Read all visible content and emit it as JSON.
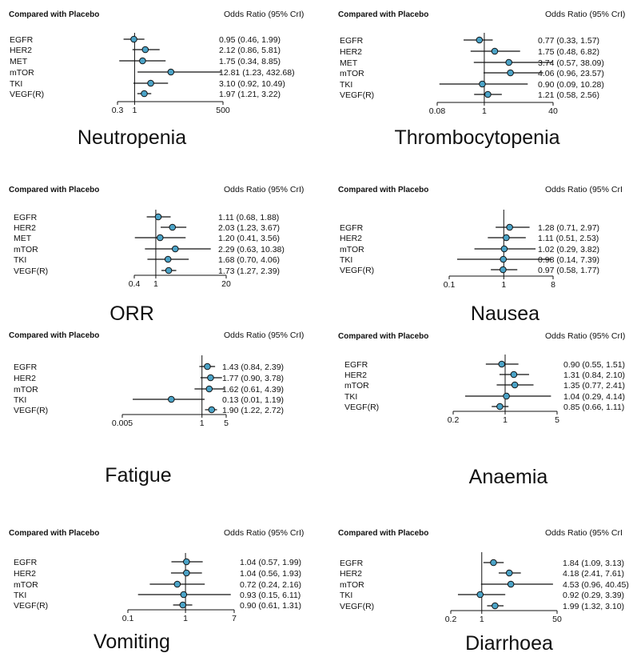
{
  "chart_data": [
    {
      "type": "forest",
      "panel_title": "Neutropenia",
      "header_left": "Compared with Placebo",
      "header_right": "Odds Ratio (95% CrI)",
      "scale": "log",
      "ticks": [
        "0.3",
        "1",
        "500"
      ],
      "xlim": [
        0.3,
        500
      ],
      "reference_line": 1,
      "rows": [
        {
          "label": "EGFR",
          "or": 0.95,
          "lo": 0.46,
          "hi": 1.99,
          "text": "0.95 (0.46, 1.99)"
        },
        {
          "label": "HER2",
          "or": 2.12,
          "lo": 0.86,
          "hi": 5.81,
          "text": "2.12 (0.86, 5.81)"
        },
        {
          "label": "MET",
          "or": 1.75,
          "lo": 0.34,
          "hi": 8.85,
          "text": "1.75 (0.34, 8.85)"
        },
        {
          "label": "mTOR",
          "or": 12.81,
          "lo": 1.23,
          "hi": 432.68,
          "text": "12.81 (1.23, 432.68)"
        },
        {
          "label": "TKI",
          "or": 3.1,
          "lo": 0.92,
          "hi": 10.49,
          "text": "3.10 (0.92, 10.49)"
        },
        {
          "label": "VEGF(R)",
          "or": 1.97,
          "lo": 1.21,
          "hi": 3.22,
          "text": "1.97 (1.21, 3.22)"
        }
      ]
    },
    {
      "type": "forest",
      "panel_title": "Thrombocytopenia",
      "header_left": "Compared with Placebo",
      "header_right": "Odds Ratio (95% CrI)",
      "scale": "log",
      "ticks": [
        "0.08",
        "1",
        "40"
      ],
      "xlim": [
        0.08,
        40
      ],
      "reference_line": 1,
      "rows": [
        {
          "label": "EGFR",
          "or": 0.77,
          "lo": 0.33,
          "hi": 1.57,
          "text": "0.77 (0.33, 1.57)"
        },
        {
          "label": "HER2",
          "or": 1.75,
          "lo": 0.48,
          "hi": 6.82,
          "text": "1.75 (0.48, 6.82)"
        },
        {
          "label": "MET",
          "or": 3.74,
          "lo": 0.57,
          "hi": 38.09,
          "text": "3.74 (0.57, 38.09)"
        },
        {
          "label": "mTOR",
          "or": 4.06,
          "lo": 0.96,
          "hi": 23.57,
          "text": "4.06 (0.96, 23.57)"
        },
        {
          "label": "TKI",
          "or": 0.9,
          "lo": 0.09,
          "hi": 10.28,
          "text": "0.90 (0.09, 10.28)"
        },
        {
          "label": "VEGF(R)",
          "or": 1.21,
          "lo": 0.58,
          "hi": 2.56,
          "text": "1.21 (0.58, 2.56)"
        }
      ]
    },
    {
      "type": "forest",
      "panel_title": "ORR",
      "header_left": "Compared with Placebo",
      "header_right": "Odds Ratio (95% CrI)",
      "scale": "log",
      "ticks": [
        "0.4",
        "1",
        "20"
      ],
      "xlim": [
        0.4,
        20
      ],
      "reference_line": 1,
      "rows": [
        {
          "label": "EGFR",
          "or": 1.11,
          "lo": 0.68,
          "hi": 1.88,
          "text": "1.11 (0.68, 1.88)"
        },
        {
          "label": "HER2",
          "or": 2.03,
          "lo": 1.23,
          "hi": 3.67,
          "text": "2.03 (1.23, 3.67)"
        },
        {
          "label": "MET",
          "or": 1.2,
          "lo": 0.41,
          "hi": 3.56,
          "text": "1.20 (0.41, 3.56)"
        },
        {
          "label": "mTOR",
          "or": 2.29,
          "lo": 0.63,
          "hi": 10.38,
          "text": "2.29 (0.63, 10.38)"
        },
        {
          "label": "TKI",
          "or": 1.68,
          "lo": 0.7,
          "hi": 4.06,
          "text": "1.68 (0.70, 4.06)"
        },
        {
          "label": "VEGF(R)",
          "or": 1.73,
          "lo": 1.27,
          "hi": 2.39,
          "text": "1.73 (1.27, 2.39)"
        }
      ]
    },
    {
      "type": "forest",
      "panel_title": "Nausea",
      "header_left": "Compared with Placebo",
      "header_right": "Odds Ratio (95% CrI",
      "scale": "log",
      "ticks": [
        "0.1",
        "1",
        "8"
      ],
      "xlim": [
        0.1,
        8
      ],
      "reference_line": 1,
      "rows": [
        {
          "label": "EGFR",
          "or": 1.28,
          "lo": 0.71,
          "hi": 2.97,
          "text": "1.28 (0.71, 2.97)"
        },
        {
          "label": "HER2",
          "or": 1.11,
          "lo": 0.51,
          "hi": 2.53,
          "text": "1.11 (0.51, 2.53)"
        },
        {
          "label": "mTOR",
          "or": 1.02,
          "lo": 0.29,
          "hi": 3.82,
          "text": "1.02 (0.29, 3.82)"
        },
        {
          "label": "TKI",
          "or": 0.98,
          "lo": 0.14,
          "hi": 7.39,
          "text": "0.98 (0.14, 7.39)"
        },
        {
          "label": "VEGF(R)",
          "or": 0.97,
          "lo": 0.58,
          "hi": 1.77,
          "text": "0.97 (0.58, 1.77)"
        }
      ]
    },
    {
      "type": "forest",
      "panel_title": "Fatigue",
      "header_left": "Compared with Placebo",
      "header_right": "Odds Ratio (95% CrI)",
      "scale": "log",
      "ticks": [
        "0.005",
        "1",
        "5"
      ],
      "xlim": [
        0.005,
        5
      ],
      "reference_line": 1,
      "rows": [
        {
          "label": "EGFR",
          "or": 1.43,
          "lo": 0.84,
          "hi": 2.39,
          "text": "1.43 (0.84, 2.39)"
        },
        {
          "label": "HER2",
          "or": 1.77,
          "lo": 0.9,
          "hi": 3.78,
          "text": "1.77 (0.90, 3.78)"
        },
        {
          "label": "mTOR",
          "or": 1.62,
          "lo": 0.61,
          "hi": 4.39,
          "text": "1.62 (0.61, 4.39)"
        },
        {
          "label": "TKI",
          "or": 0.13,
          "lo": 0.01,
          "hi": 1.19,
          "text": "0.13 (0.01, 1.19)"
        },
        {
          "label": "VEGF(R)",
          "or": 1.9,
          "lo": 1.22,
          "hi": 2.72,
          "text": "1.90 (1.22, 2.72)"
        }
      ]
    },
    {
      "type": "forest",
      "panel_title": "Anaemia",
      "header_left": "Compared with Placebo",
      "header_right": "Odds Ratio (95% CrI)",
      "scale": "log",
      "ticks": [
        "0.2",
        "1",
        "5"
      ],
      "xlim": [
        0.2,
        5
      ],
      "reference_line": 1,
      "rows": [
        {
          "label": "EGFR",
          "or": 0.9,
          "lo": 0.55,
          "hi": 1.51,
          "text": "0.90 (0.55, 1.51)"
        },
        {
          "label": "HER2",
          "or": 1.31,
          "lo": 0.84,
          "hi": 2.1,
          "text": "1.31 (0.84, 2.10)"
        },
        {
          "label": "mTOR",
          "or": 1.35,
          "lo": 0.77,
          "hi": 2.41,
          "text": "1.35 (0.77, 2.41)"
        },
        {
          "label": "TKI",
          "or": 1.04,
          "lo": 0.29,
          "hi": 4.14,
          "text": "1.04 (0.29, 4.14)"
        },
        {
          "label": "VEGF(R)",
          "or": 0.85,
          "lo": 0.66,
          "hi": 1.11,
          "text": "0.85 (0.66, 1.11)"
        }
      ]
    },
    {
      "type": "forest",
      "panel_title": "Vomiting",
      "header_left": "Compared with Placebo",
      "header_right": "Odds Ratio (95% CrI)",
      "scale": "log",
      "ticks": [
        "0.1",
        "1",
        "7"
      ],
      "xlim": [
        0.1,
        7
      ],
      "reference_line": 1,
      "rows": [
        {
          "label": "EGFR",
          "or": 1.04,
          "lo": 0.57,
          "hi": 1.99,
          "text": "1.04 (0.57, 1.99)"
        },
        {
          "label": "HER2",
          "or": 1.04,
          "lo": 0.56,
          "hi": 1.93,
          "text": "1.04 (0.56, 1.93)"
        },
        {
          "label": "mTOR",
          "or": 0.72,
          "lo": 0.24,
          "hi": 2.16,
          "text": "0.72 (0.24, 2.16)"
        },
        {
          "label": "TKI",
          "or": 0.93,
          "lo": 0.15,
          "hi": 6.11,
          "text": "0.93 (0.15, 6.11)"
        },
        {
          "label": "VEGF(R)",
          "or": 0.9,
          "lo": 0.61,
          "hi": 1.31,
          "text": "0.90 (0.61, 1.31)"
        }
      ]
    },
    {
      "type": "forest",
      "panel_title": "Diarrhoea",
      "header_left": "Compared with Placebo",
      "header_right": "Odds Ratio (95% CrI",
      "scale": "log",
      "ticks": [
        "0.2",
        "1",
        "50"
      ],
      "xlim": [
        0.2,
        50
      ],
      "reference_line": 1,
      "rows": [
        {
          "label": "EGFR",
          "or": 1.84,
          "lo": 1.09,
          "hi": 3.13,
          "text": "1.84 (1.09, 3.13)"
        },
        {
          "label": "HER2",
          "or": 4.18,
          "lo": 2.41,
          "hi": 7.61,
          "text": "4.18 (2.41, 7.61)"
        },
        {
          "label": "mTOR",
          "or": 4.53,
          "lo": 0.96,
          "hi": 40.45,
          "text": "4.53 (0.96, 40.45)"
        },
        {
          "label": "TKI",
          "or": 0.92,
          "lo": 0.29,
          "hi": 3.39,
          "text": "0.92 (0.29, 3.39)"
        },
        {
          "label": "VEGF(R)",
          "or": 1.99,
          "lo": 1.32,
          "hi": 3.1,
          "text": "1.99 (1.32, 3.10)"
        }
      ]
    }
  ],
  "colors": {
    "marker_fill": "#4ba3c7",
    "marker_stroke": "#111111",
    "line": "#111111",
    "text": "#111111"
  }
}
